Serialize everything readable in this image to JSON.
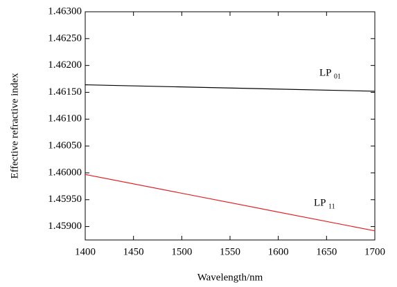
{
  "chart_data": {
    "type": "line",
    "x_label": "Wavelength/nm",
    "y_label": "Effective refractive index",
    "x": [
      1400,
      1700
    ],
    "series": [
      {
        "color": "#000000",
        "values": [
          1.46164,
          1.46152
        ]
      },
      {
        "color": "#e02020",
        "values": [
          1.45997,
          1.45892
        ]
      }
    ],
    "xlim": [
      1400,
      1700
    ],
    "ylim": [
      1.45875,
      1.463
    ],
    "xticks": [
      1400,
      1450,
      1500,
      1550,
      1600,
      1650,
      1700
    ],
    "yticks": [
      {
        "value": 1.459,
        "label": "1.45900"
      },
      {
        "value": 1.4595,
        "label": "1.45950"
      },
      {
        "value": 1.46,
        "label": "1.46000"
      },
      {
        "value": 1.4605,
        "label": "1.46050"
      },
      {
        "value": 1.461,
        "label": "1.46100"
      },
      {
        "value": 1.4615,
        "label": "1.46150"
      },
      {
        "value": 1.462,
        "label": "1.46200"
      },
      {
        "value": 1.4625,
        "label": "1.46250"
      },
      {
        "value": 1.463,
        "label": "1.46300"
      }
    ],
    "annotations": [
      {
        "text": "LP",
        "sub": "01"
      },
      {
        "text": "LP",
        "sub": "11"
      }
    ],
    "grid": false
  }
}
